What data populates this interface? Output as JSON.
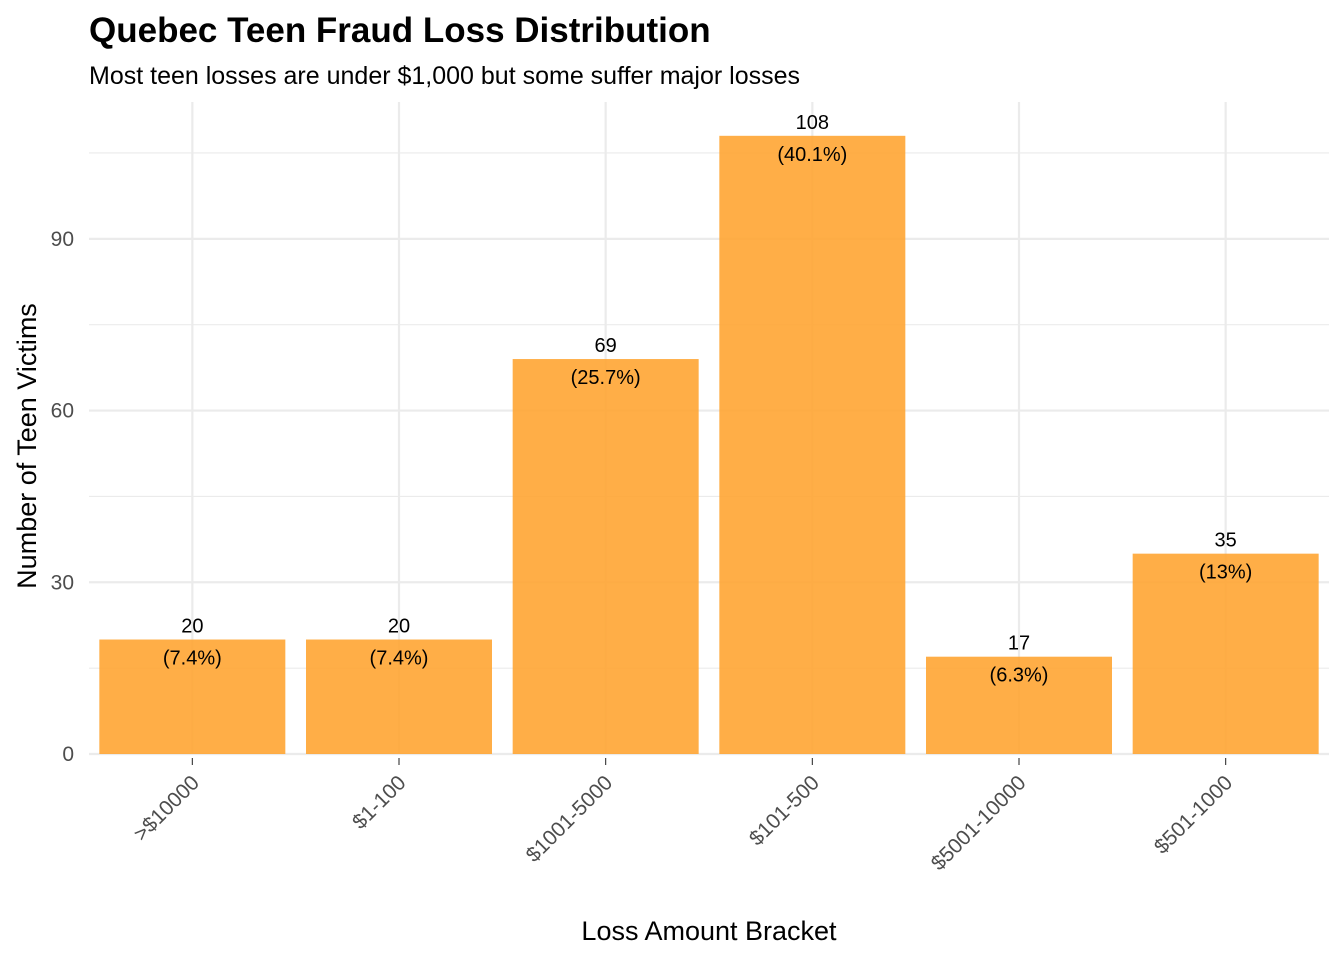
{
  "colors": {
    "bar": "#FFA533",
    "grid": "#ebebeb",
    "tick_text": "#4d4d4d"
  },
  "chart_data": {
    "type": "bar",
    "title": "Quebec Teen Fraud Loss Distribution",
    "subtitle": "Most teen losses are under $1,000 but some suffer major losses",
    "xlabel": "Loss Amount Bracket",
    "ylabel": "Number of Teen Victims",
    "categories": [
      ">$10000",
      "$1-100",
      "$1001-5000",
      "$101-500",
      "$5001-10000",
      "$501-1000"
    ],
    "values": [
      20,
      20,
      69,
      108,
      17,
      35
    ],
    "labels": [
      [
        "20",
        "(7.4%)"
      ],
      [
        "20",
        "(7.4%)"
      ],
      [
        "69",
        "(25.7%)"
      ],
      [
        "108",
        "(40.1%)"
      ],
      [
        "17",
        "(6.3%)"
      ],
      [
        "35",
        "(13%)"
      ]
    ],
    "yticks": [
      0,
      30,
      60,
      90
    ],
    "ylim": [
      0,
      113.4
    ],
    "grid": true,
    "legend": "none"
  }
}
